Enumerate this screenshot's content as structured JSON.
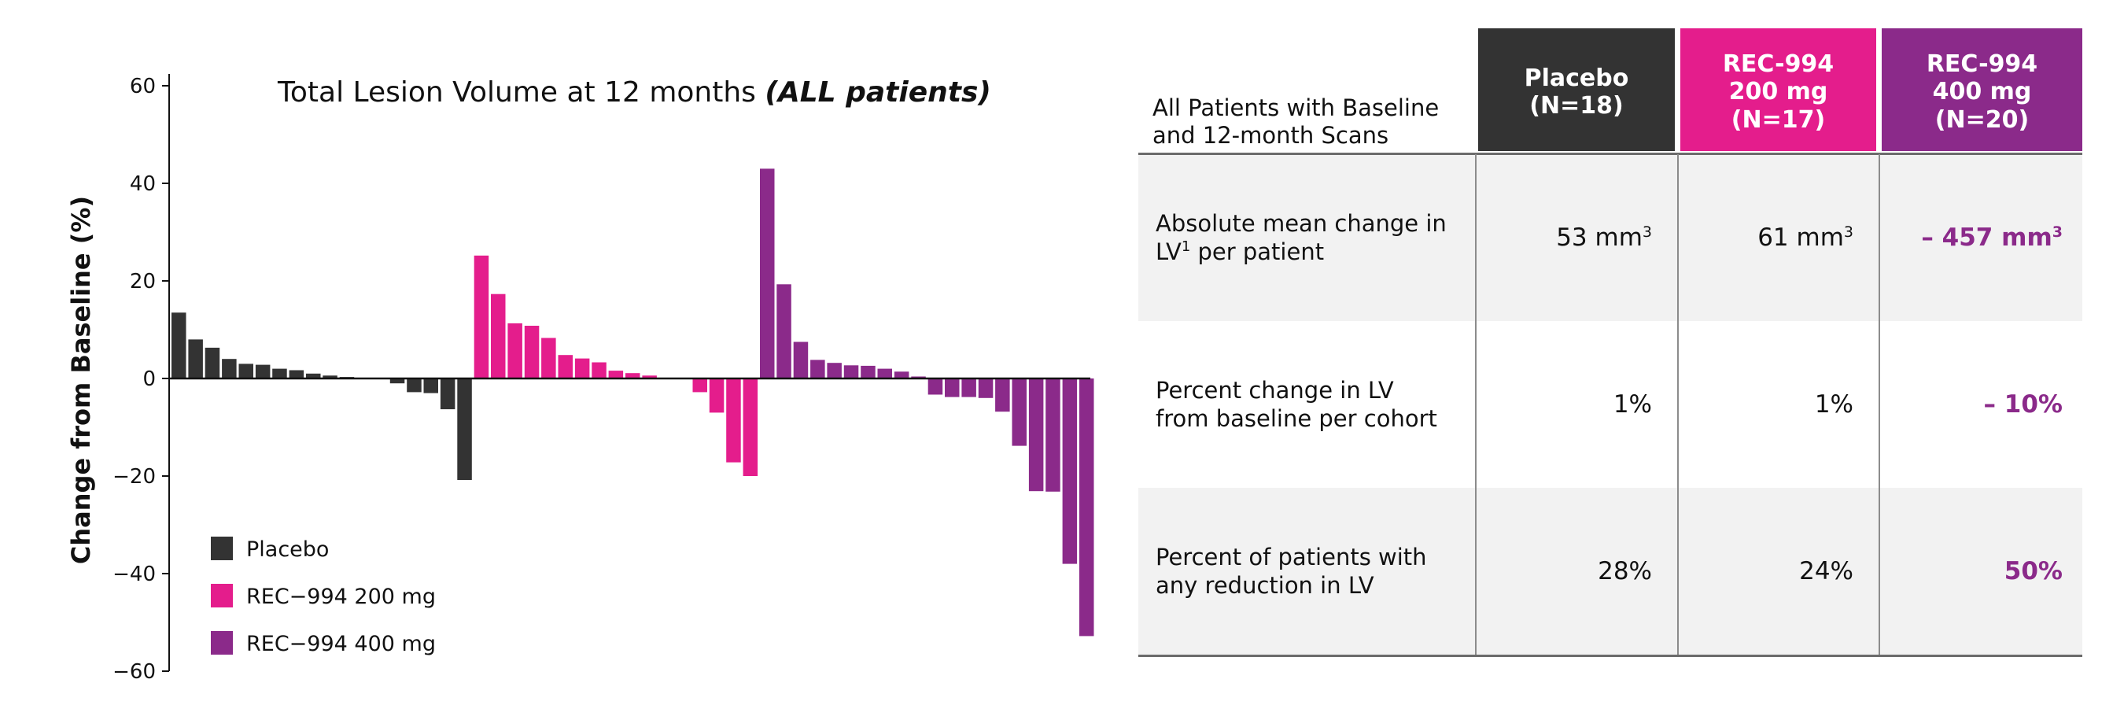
{
  "colors": {
    "placebo": "#333333",
    "rec200": "#e41d8c",
    "rec400": "#8b2a8a",
    "accent_text": "#8b2a8a",
    "table_shade": "#f2f2f2"
  },
  "chart_data": {
    "type": "bar",
    "title_plain": "Total Lesion Volume at 12 months ",
    "title_emph": "(ALL patients)",
    "xlabel": "",
    "ylabel": "Change from Baseline (%)",
    "ylim": [
      -60,
      60
    ],
    "y_ticks": [
      "60",
      "40",
      "20",
      "0",
      "−20",
      "−40",
      "−60"
    ],
    "y_tick_values": [
      60,
      40,
      20,
      0,
      -20,
      -40,
      -60
    ],
    "legend": [
      {
        "label": "Placebo",
        "color": "#333333"
      },
      {
        "label": "REC−994 200 mg",
        "color": "#e41d8c"
      },
      {
        "label": "REC−994 400 mg",
        "color": "#8b2a8a"
      }
    ],
    "legend_position": "bottom-left",
    "series": [
      {
        "name": "Placebo",
        "color": "#333333",
        "values": [
          13.5,
          8,
          6.3,
          4,
          3,
          2.8,
          2,
          1.7,
          1,
          0.6,
          0.3,
          0.1,
          0,
          -1,
          -2.8,
          -3,
          -6.3,
          -20.8
        ]
      },
      {
        "name": "REC−994 200 mg",
        "color": "#e41d8c",
        "values": [
          25.2,
          17.3,
          11.3,
          10.8,
          8.3,
          4.8,
          4.1,
          3.3,
          1.6,
          1.1,
          0.6,
          0.1,
          0,
          -2.8,
          -7,
          -17.2,
          -20
        ]
      },
      {
        "name": "REC−994 400 mg",
        "color": "#8b2a8a",
        "values": [
          43,
          19.3,
          7.5,
          3.8,
          3.2,
          2.7,
          2.6,
          2,
          1.4,
          0.4,
          -3.3,
          -3.8,
          -3.8,
          -4,
          -6.8,
          -13.8,
          -23.1,
          -23.2,
          -38,
          -52.8
        ]
      }
    ]
  },
  "table": {
    "header_label": "All Patients with Baseline and 12-month Scans",
    "columns": [
      {
        "line1": "Placebo",
        "line2": "(N=18)",
        "line3": "",
        "color": "#333333"
      },
      {
        "line1": "REC-994",
        "line2": "200 mg",
        "line3": "(N=17)",
        "color": "#e41d8c"
      },
      {
        "line1": "REC-994",
        "line2": "400 mg",
        "line3": "(N=20)",
        "color": "#8b2a8a"
      }
    ],
    "rows": [
      {
        "label_a": "Absolute mean change in",
        "label_b": "LV",
        "label_sup": "1",
        "label_c": " per patient",
        "v1": "53 mm",
        "v1_sup": "3",
        "v2": "61 mm",
        "v2_sup": "3",
        "v3": "– 457 mm",
        "v3_sup": "3"
      },
      {
        "label_a": "Percent change in LV",
        "label_b": "from baseline per cohort",
        "label_sup": "",
        "label_c": "",
        "v1": "1%",
        "v1_sup": "",
        "v2": "1%",
        "v2_sup": "",
        "v3": "– 10%",
        "v3_sup": ""
      },
      {
        "label_a": "Percent of patients with",
        "label_b": "any reduction in LV",
        "label_sup": "",
        "label_c": "",
        "v1": "28%",
        "v1_sup": "",
        "v2": "24%",
        "v2_sup": "",
        "v3": "50%",
        "v3_sup": ""
      }
    ]
  }
}
